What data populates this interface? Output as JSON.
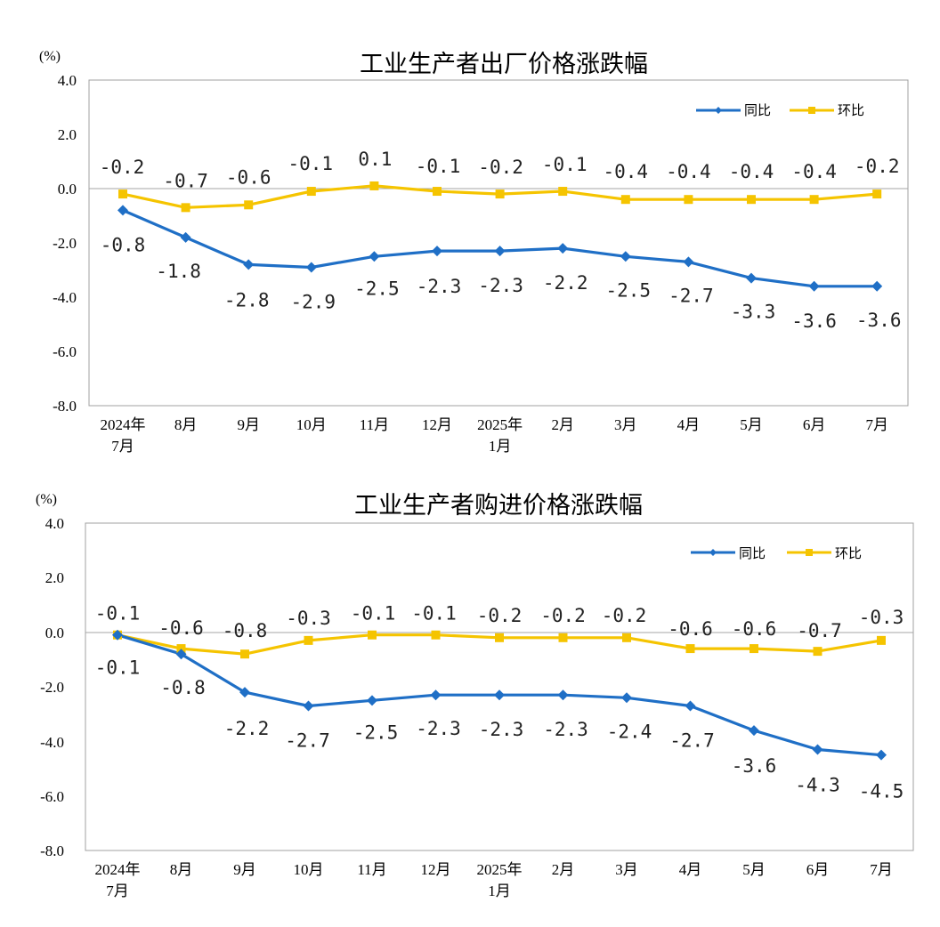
{
  "colors": {
    "yoy": "#1f6fc6",
    "mom": "#f5c400"
  },
  "chart_data": [
    {
      "type": "line",
      "title": "工业生产者出厂价格涨跌幅",
      "unit": "(%)",
      "ylim": [
        -8.0,
        4.0
      ],
      "yticks": [
        "4.0",
        "2.0",
        "0.0",
        "-2.0",
        "-4.0",
        "-6.0",
        "-8.0"
      ],
      "categories": [
        [
          "2024年",
          "7月"
        ],
        [
          "8月"
        ],
        [
          "9月"
        ],
        [
          "10月"
        ],
        [
          "11月"
        ],
        [
          "12月"
        ],
        [
          "2025年",
          "1月"
        ],
        [
          "2月"
        ],
        [
          "3月"
        ],
        [
          "4月"
        ],
        [
          "5月"
        ],
        [
          "6月"
        ],
        [
          "7月"
        ]
      ],
      "legend": [
        "同比",
        "环比"
      ],
      "legend_position": "top-right",
      "series": [
        {
          "name": "同比",
          "marker": "diamond",
          "values": [
            -0.8,
            -1.8,
            -2.8,
            -2.9,
            -2.5,
            -2.3,
            -2.3,
            -2.2,
            -2.5,
            -2.7,
            -3.3,
            -3.6,
            -3.6
          ]
        },
        {
          "name": "环比",
          "marker": "square",
          "values": [
            -0.2,
            -0.7,
            -0.6,
            -0.1,
            0.1,
            -0.1,
            -0.2,
            -0.1,
            -0.4,
            -0.4,
            -0.4,
            -0.4,
            -0.2
          ]
        }
      ],
      "data_labels": {
        "同比": [
          "-0.8",
          "-1.8",
          "-2.8",
          "-2.9",
          "-2.5",
          "-2.3",
          "-2.3",
          "-2.2",
          "-2.5",
          "-2.7",
          "-3.3",
          "-3.6",
          "-3.6"
        ],
        "环比": [
          "-0.2",
          "-0.7",
          "-0.6",
          "-0.1",
          "0.1",
          "-0.1",
          "-0.2",
          "-0.1",
          "-0.4",
          "-0.4",
          "-0.4",
          "-0.4",
          "-0.2"
        ]
      }
    },
    {
      "type": "line",
      "title": "工业生产者购进价格涨跌幅",
      "unit": "(%)",
      "ylim": [
        -8.0,
        4.0
      ],
      "yticks": [
        "4.0",
        "2.0",
        "0.0",
        "-2.0",
        "-4.0",
        "-6.0",
        "-8.0"
      ],
      "categories": [
        [
          "2024年",
          "7月"
        ],
        [
          "8月"
        ],
        [
          "9月"
        ],
        [
          "10月"
        ],
        [
          "11月"
        ],
        [
          "12月"
        ],
        [
          "2025年",
          "1月"
        ],
        [
          "2月"
        ],
        [
          "3月"
        ],
        [
          "4月"
        ],
        [
          "5月"
        ],
        [
          "6月"
        ],
        [
          "7月"
        ]
      ],
      "legend": [
        "同比",
        "环比"
      ],
      "legend_position": "top-right",
      "series": [
        {
          "name": "同比",
          "marker": "diamond",
          "values": [
            -0.1,
            -0.8,
            -2.2,
            -2.7,
            -2.5,
            -2.3,
            -2.3,
            -2.3,
            -2.4,
            -2.7,
            -3.6,
            -4.3,
            -4.5
          ]
        },
        {
          "name": "环比",
          "marker": "square",
          "values": [
            -0.1,
            -0.6,
            -0.8,
            -0.3,
            -0.1,
            -0.1,
            -0.2,
            -0.2,
            -0.2,
            -0.6,
            -0.6,
            -0.7,
            -0.3
          ]
        }
      ],
      "data_labels": {
        "同比": [
          "-0.1",
          "-0.8",
          "-2.2",
          "-2.7",
          "-2.5",
          "-2.3",
          "-2.3",
          "-2.3",
          "-2.4",
          "-2.7",
          "-3.6",
          "-4.3",
          "-4.5"
        ],
        "环比": [
          "-0.1",
          "-0.6",
          "-0.8",
          "-0.3",
          "-0.1",
          "-0.1",
          "-0.2",
          "-0.2",
          "-0.2",
          "-0.6",
          "-0.6",
          "-0.7",
          "-0.3"
        ]
      }
    }
  ]
}
